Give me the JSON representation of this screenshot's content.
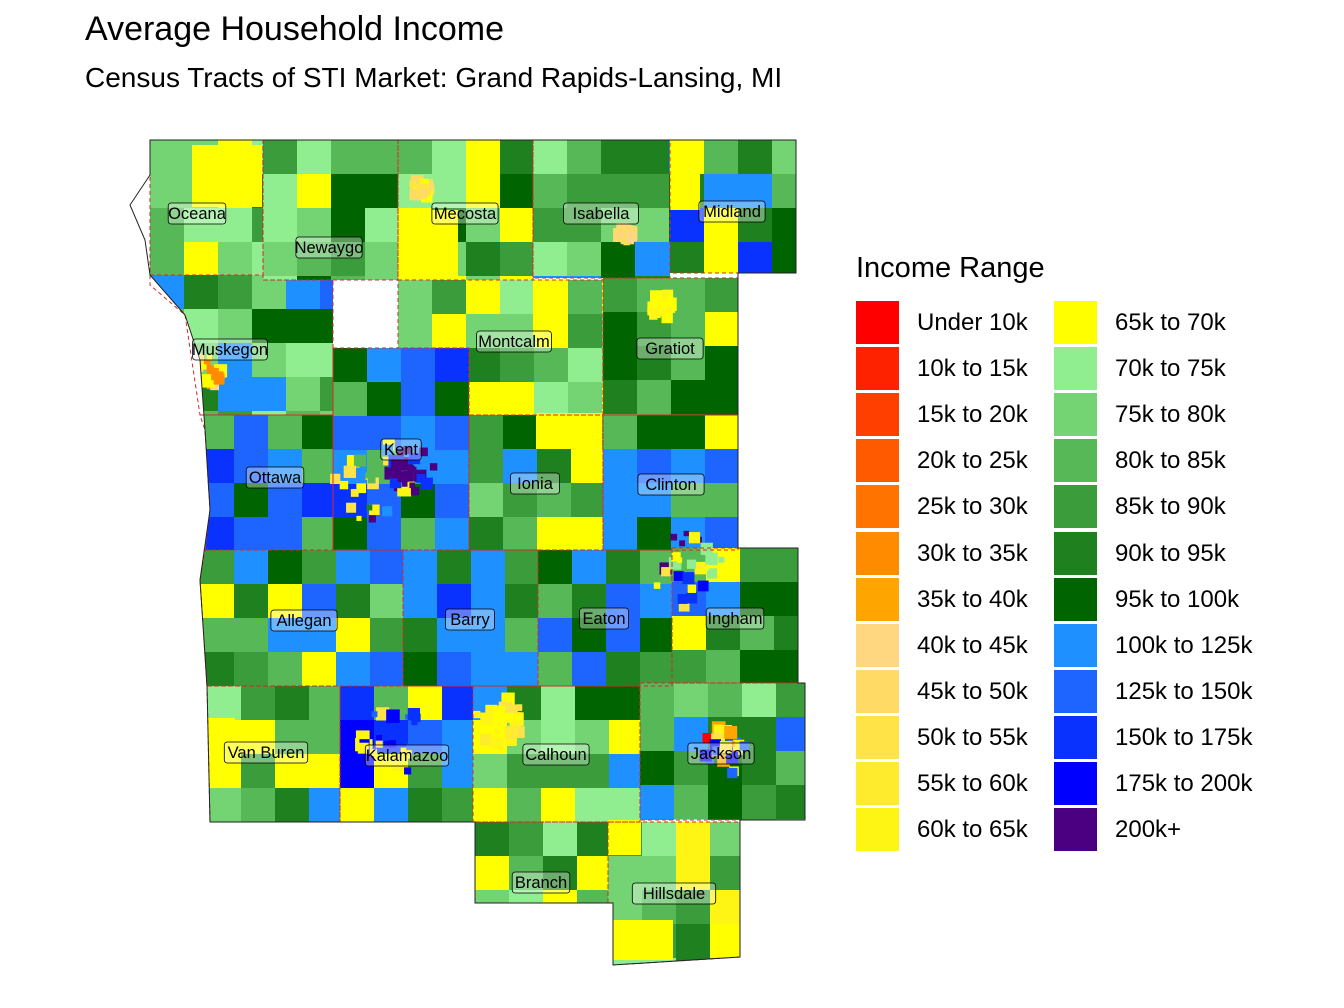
{
  "title": "Average Household Income",
  "subtitle": "Census Tracts of STI Market: Grand Rapids-Lansing, MI",
  "legend": {
    "title": "Income Range",
    "items": [
      {
        "label": "Under 10k",
        "color": "#ff0000"
      },
      {
        "label": "10k to 15k",
        "color": "#ff2200"
      },
      {
        "label": "15k to 20k",
        "color": "#ff3f00"
      },
      {
        "label": "20k to 25k",
        "color": "#ff5a00"
      },
      {
        "label": "25k to 30k",
        "color": "#ff7300"
      },
      {
        "label": "30k to 35k",
        "color": "#ff8c00"
      },
      {
        "label": "35k to 40k",
        "color": "#ffa500"
      },
      {
        "label": "40k to 45k",
        "color": "#ffd780"
      },
      {
        "label": "45k to 50k",
        "color": "#ffdb66"
      },
      {
        "label": "50k to 55k",
        "color": "#ffe347"
      },
      {
        "label": "55k to 60k",
        "color": "#ffeb2e"
      },
      {
        "label": "60k to 65k",
        "color": "#fff514"
      },
      {
        "label": "65k to 70k",
        "color": "#ffff00"
      },
      {
        "label": "70k to 75k",
        "color": "#90ee90"
      },
      {
        "label": "75k to 80k",
        "color": "#74d474"
      },
      {
        "label": "80k to 85k",
        "color": "#57b857"
      },
      {
        "label": "85k to 90k",
        "color": "#3a9c3a"
      },
      {
        "label": "90k to 95k",
        "color": "#1e801e"
      },
      {
        "label": "95k to 100k",
        "color": "#006400"
      },
      {
        "label": "100k to 125k",
        "color": "#1e90ff"
      },
      {
        "label": "125k to 150k",
        "color": "#1e64ff"
      },
      {
        "label": "150k to 175k",
        "color": "#0a32ff"
      },
      {
        "label": "175k to 200k",
        "color": "#0000ff"
      },
      {
        "label": "200k+",
        "color": "#4b0082"
      }
    ]
  },
  "counties": [
    {
      "name": "Oceana",
      "fill": "#74d474"
    },
    {
      "name": "Newaygo",
      "fill": "#57b857"
    },
    {
      "name": "Mecosta",
      "fill": "#74d474"
    },
    {
      "name": "Isabella",
      "fill": "#57b857"
    },
    {
      "name": "Midland",
      "fill": "#57b857"
    },
    {
      "name": "Muskegon",
      "fill": "#57b857"
    },
    {
      "name": "Montcalm",
      "fill": "#74d474"
    },
    {
      "name": "Gratiot",
      "fill": "#57b857"
    },
    {
      "name": "Ottawa",
      "fill": "#1e90ff"
    },
    {
      "name": "Kent",
      "fill": "#1e64ff"
    },
    {
      "name": "Ionia",
      "fill": "#3a9c3a"
    },
    {
      "name": "Clinton",
      "fill": "#1e90ff"
    },
    {
      "name": "Allegan",
      "fill": "#3a9c3a"
    },
    {
      "name": "Barry",
      "fill": "#1e90ff"
    },
    {
      "name": "Eaton",
      "fill": "#1e90ff"
    },
    {
      "name": "Ingham",
      "fill": "#1e90ff"
    },
    {
      "name": "Van Buren",
      "fill": "#57b857"
    },
    {
      "name": "Kalamazoo",
      "fill": "#1e90ff"
    },
    {
      "name": "Calhoun",
      "fill": "#1e90ff"
    },
    {
      "name": "Jackson",
      "fill": "#57b857"
    },
    {
      "name": "Branch",
      "fill": "#57b857"
    },
    {
      "name": "Hillsdale",
      "fill": "#74d474"
    }
  ]
}
